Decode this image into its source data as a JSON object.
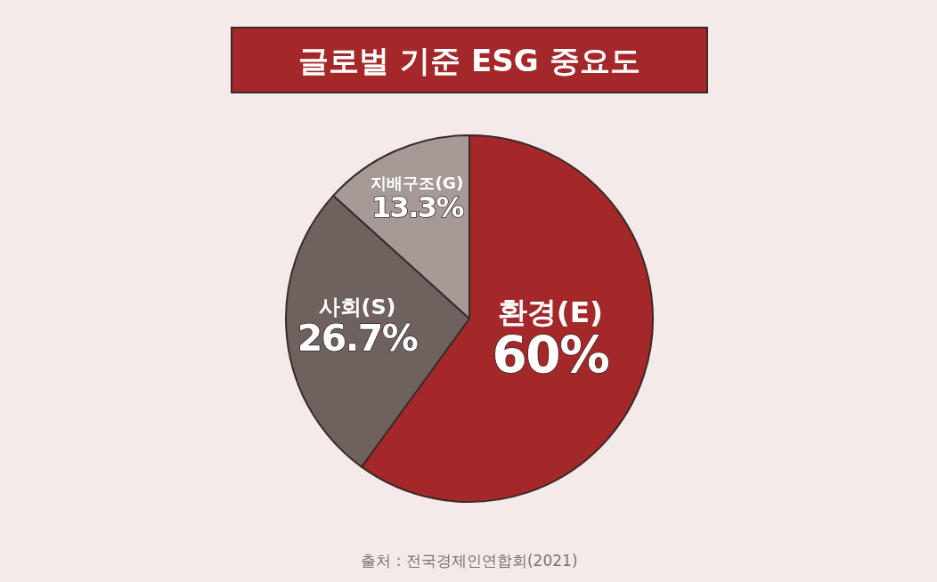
{
  "chart_data": {
    "type": "pie",
    "title": "글로벌 기준 ESG 중요도",
    "categories": [
      "환경(E)",
      "사회(S)",
      "지배구조(G)"
    ],
    "values": [
      60,
      26.7,
      13.3
    ],
    "value_labels": [
      "60%",
      "26.7%",
      "13.3%"
    ],
    "colors": [
      "#a4282a",
      "#6f625e",
      "#a59a96"
    ],
    "annotations": [
      "출처 : 전국경제인연합회(2021)"
    ]
  }
}
